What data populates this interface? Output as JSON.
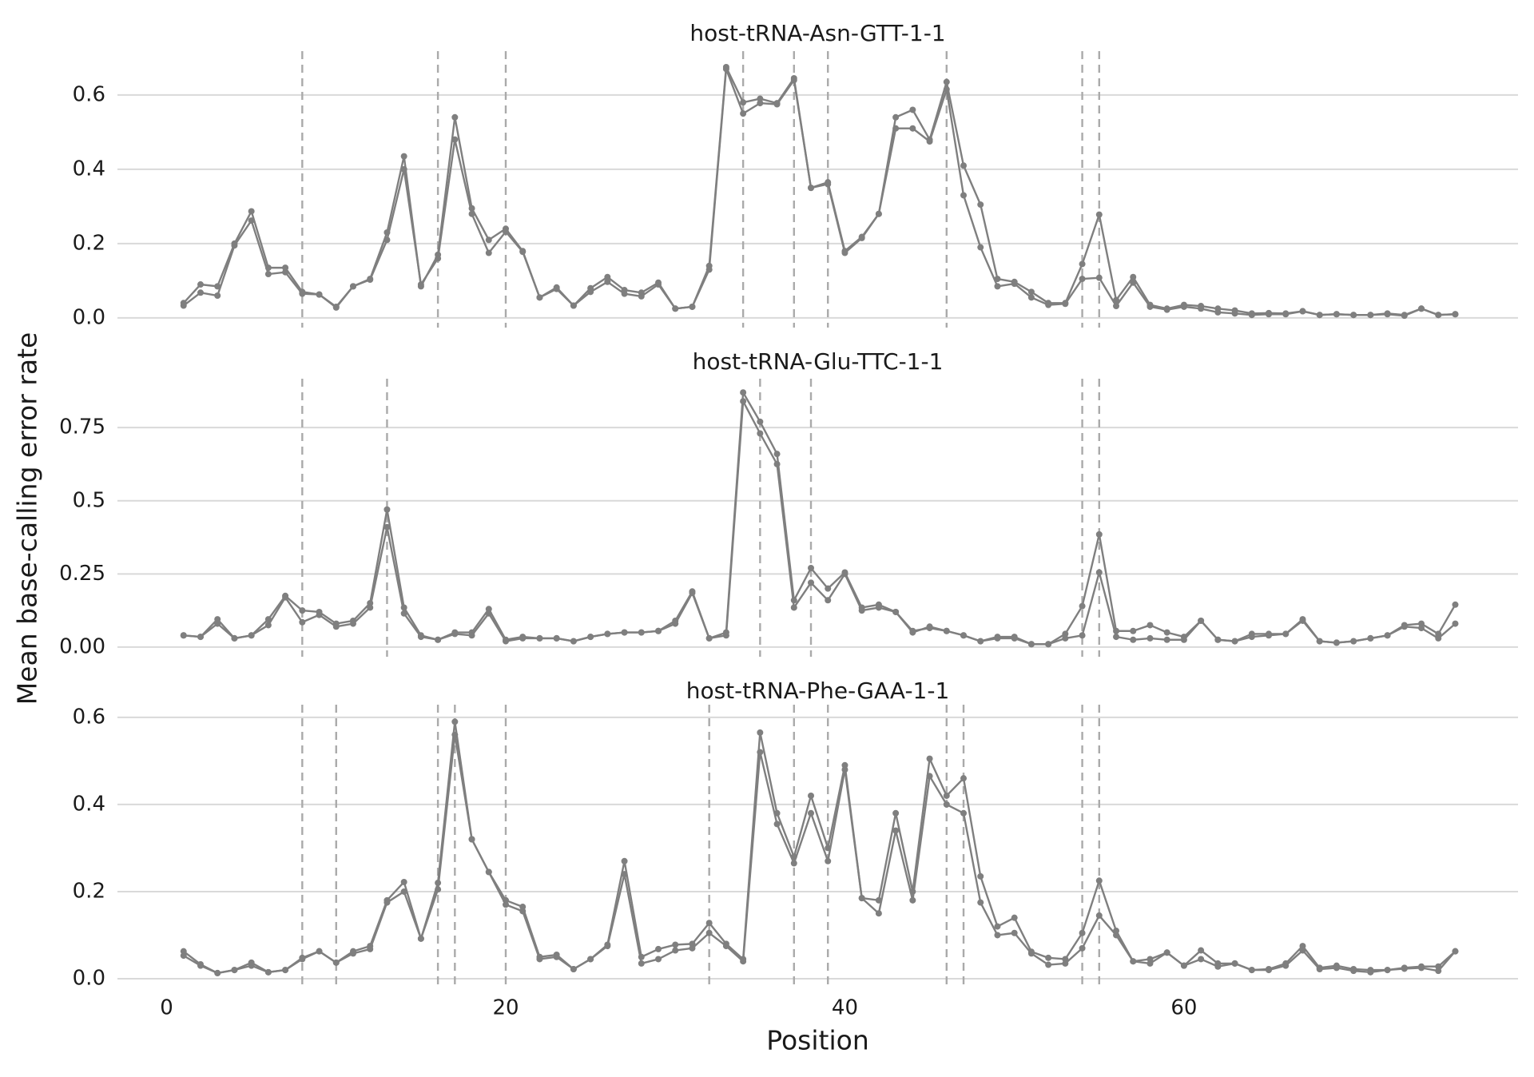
{
  "chart_data": [
    {
      "type": "line",
      "title": "host-tRNA-Asn-GTT-1-1",
      "x": [
        1,
        2,
        3,
        4,
        5,
        6,
        7,
        8,
        9,
        10,
        11,
        12,
        13,
        14,
        15,
        16,
        17,
        18,
        19,
        20,
        21,
        22,
        23,
        24,
        25,
        26,
        27,
        28,
        29,
        30,
        31,
        32,
        33,
        34,
        35,
        36,
        37,
        38,
        39,
        40,
        41,
        42,
        43,
        44,
        45,
        46,
        47,
        48,
        49,
        50,
        51,
        52,
        53,
        54,
        55,
        56,
        57,
        58,
        59,
        60,
        61,
        62,
        63,
        64,
        65,
        66,
        67,
        68,
        69,
        70,
        71,
        72,
        73,
        74,
        75,
        76
      ],
      "series": [
        {
          "color": "#7f7f7f",
          "values": [
            0.04,
            0.09,
            0.085,
            0.2,
            0.287,
            0.135,
            0.135,
            0.07,
            0.063,
            0.028,
            0.085,
            0.105,
            0.23,
            0.435,
            0.085,
            0.17,
            0.54,
            0.295,
            0.21,
            0.24,
            0.18,
            0.055,
            0.082,
            0.033,
            0.08,
            0.11,
            0.075,
            0.068,
            0.095,
            0.025,
            0.03,
            0.14,
            0.675,
            0.58,
            0.59,
            0.578,
            0.645,
            0.35,
            0.365,
            0.18,
            0.218,
            0.28,
            0.54,
            0.56,
            0.48,
            0.635,
            0.41,
            0.305,
            0.105,
            0.097,
            0.07,
            0.04,
            0.04,
            0.145,
            0.278,
            0.048,
            0.11,
            0.035,
            0.025,
            0.035,
            0.032,
            0.025,
            0.02,
            0.012,
            0.013,
            0.012,
            0.018,
            0.008,
            0.01,
            0.008,
            0.008,
            0.012,
            0.008,
            0.025,
            0.008,
            0.01
          ]
        },
        {
          "color": "#7f7f7f",
          "values": [
            0.033,
            0.068,
            0.06,
            0.195,
            0.262,
            0.118,
            0.123,
            0.065,
            0.063,
            0.03,
            0.085,
            0.103,
            0.21,
            0.4,
            0.09,
            0.16,
            0.48,
            0.28,
            0.175,
            0.232,
            0.178,
            0.055,
            0.078,
            0.033,
            0.07,
            0.097,
            0.065,
            0.058,
            0.09,
            0.025,
            0.03,
            0.13,
            0.67,
            0.55,
            0.578,
            0.575,
            0.64,
            0.35,
            0.36,
            0.175,
            0.215,
            0.28,
            0.51,
            0.51,
            0.475,
            0.615,
            0.33,
            0.19,
            0.085,
            0.092,
            0.055,
            0.035,
            0.038,
            0.105,
            0.108,
            0.032,
            0.095,
            0.03,
            0.022,
            0.03,
            0.025,
            0.015,
            0.012,
            0.008,
            0.01,
            0.01,
            0.018,
            0.008,
            0.01,
            0.008,
            0.008,
            0.01,
            0.006,
            0.025,
            0.008,
            0.01
          ]
        }
      ],
      "vlines": [
        8,
        16,
        20,
        34,
        37,
        39,
        46,
        54,
        55
      ],
      "vline_color": "#aaaaaa",
      "xlim": [
        -2.9,
        79.7
      ],
      "ylim": [
        -0.026,
        0.718
      ],
      "yticks": [
        {
          "value": 0,
          "label": "0.0"
        },
        {
          "value": 0.2,
          "label": "0.2"
        },
        {
          "value": 0.4,
          "label": "0.4"
        },
        {
          "value": 0.6,
          "label": "0.6"
        }
      ],
      "grid": true
    },
    {
      "type": "line",
      "title": "host-tRNA-Glu-TTC-1-1",
      "ylabel": "Mean base-calling error rate",
      "x": [
        1,
        2,
        3,
        4,
        5,
        6,
        7,
        8,
        9,
        10,
        11,
        12,
        13,
        14,
        15,
        16,
        17,
        18,
        19,
        20,
        21,
        22,
        23,
        24,
        25,
        26,
        27,
        28,
        29,
        30,
        31,
        32,
        33,
        34,
        35,
        36,
        37,
        38,
        39,
        40,
        41,
        42,
        43,
        44,
        45,
        46,
        47,
        48,
        49,
        50,
        51,
        52,
        53,
        54,
        55,
        56,
        57,
        58,
        59,
        60,
        61,
        62,
        63,
        64,
        65,
        66,
        67,
        68,
        69,
        70,
        71,
        72,
        73,
        74,
        75,
        76
      ],
      "series": [
        {
          "color": "#7f7f7f",
          "values": [
            0.04,
            0.035,
            0.095,
            0.03,
            0.04,
            0.095,
            0.175,
            0.125,
            0.12,
            0.08,
            0.09,
            0.15,
            0.47,
            0.135,
            0.04,
            0.025,
            0.05,
            0.05,
            0.13,
            0.025,
            0.035,
            0.03,
            0.03,
            0.02,
            0.035,
            0.045,
            0.05,
            0.05,
            0.055,
            0.09,
            0.19,
            0.03,
            0.05,
            0.87,
            0.77,
            0.66,
            0.16,
            0.27,
            0.2,
            0.255,
            0.135,
            0.145,
            0.12,
            0.05,
            0.07,
            0.055,
            0.04,
            0.02,
            0.035,
            0.035,
            0.01,
            0.01,
            0.045,
            0.14,
            0.385,
            0.055,
            0.055,
            0.075,
            0.05,
            0.035,
            0.09,
            0.025,
            0.02,
            0.045,
            0.045,
            0.045,
            0.095,
            0.02,
            0.015,
            0.02,
            0.03,
            0.04,
            0.075,
            0.08,
            0.045,
            0.145
          ]
        },
        {
          "color": "#7f7f7f",
          "values": [
            0.04,
            0.035,
            0.08,
            0.03,
            0.04,
            0.075,
            0.17,
            0.085,
            0.11,
            0.07,
            0.08,
            0.135,
            0.41,
            0.115,
            0.035,
            0.025,
            0.045,
            0.04,
            0.115,
            0.02,
            0.03,
            0.03,
            0.03,
            0.02,
            0.035,
            0.045,
            0.05,
            0.05,
            0.055,
            0.08,
            0.185,
            0.03,
            0.04,
            0.84,
            0.73,
            0.625,
            0.135,
            0.22,
            0.16,
            0.25,
            0.125,
            0.135,
            0.12,
            0.055,
            0.065,
            0.055,
            0.04,
            0.02,
            0.03,
            0.03,
            0.01,
            0.01,
            0.03,
            0.04,
            0.255,
            0.035,
            0.025,
            0.03,
            0.025,
            0.025,
            0.09,
            0.025,
            0.02,
            0.035,
            0.04,
            0.045,
            0.09,
            0.02,
            0.015,
            0.02,
            0.03,
            0.04,
            0.07,
            0.065,
            0.03,
            0.08
          ]
        }
      ],
      "vlines": [
        8,
        13,
        35,
        38,
        54,
        55
      ],
      "vline_color": "#aaaaaa",
      "xlim": [
        -2.9,
        79.7
      ],
      "ylim": [
        -0.033,
        0.917
      ],
      "yticks": [
        {
          "value": 0,
          "label": "0.00"
        },
        0.25,
        0.5,
        0.75
      ],
      "grid": true
    },
    {
      "type": "line",
      "title": "host-tRNA-Phe-GAA-1-1",
      "xlabel": "Position",
      "x": [
        1,
        2,
        3,
        4,
        5,
        6,
        7,
        8,
        9,
        10,
        11,
        12,
        13,
        14,
        15,
        16,
        17,
        18,
        19,
        20,
        21,
        22,
        23,
        24,
        25,
        26,
        27,
        28,
        29,
        30,
        31,
        32,
        33,
        34,
        35,
        36,
        37,
        38,
        39,
        40,
        41,
        42,
        43,
        44,
        45,
        46,
        47,
        48,
        49,
        50,
        51,
        52,
        53,
        54,
        55,
        56,
        57,
        58,
        59,
        60,
        61,
        62,
        63,
        64,
        65,
        66,
        67,
        68,
        69,
        70,
        71,
        72,
        73,
        74,
        75,
        76
      ],
      "series": [
        {
          "color": "#7f7f7f",
          "values": [
            0.063,
            0.033,
            0.013,
            0.02,
            0.037,
            0.015,
            0.02,
            0.048,
            0.063,
            0.037,
            0.063,
            0.075,
            0.18,
            0.222,
            0.092,
            0.22,
            0.59,
            0.32,
            0.245,
            0.18,
            0.165,
            0.05,
            0.055,
            0.022,
            0.045,
            0.078,
            0.27,
            0.05,
            0.068,
            0.078,
            0.08,
            0.128,
            0.08,
            0.045,
            0.565,
            0.38,
            0.28,
            0.42,
            0.3,
            0.49,
            0.185,
            0.18,
            0.38,
            0.2,
            0.505,
            0.42,
            0.46,
            0.235,
            0.12,
            0.14,
            0.062,
            0.048,
            0.045,
            0.105,
            0.225,
            0.11,
            0.04,
            0.045,
            0.06,
            0.03,
            0.065,
            0.035,
            0.035,
            0.02,
            0.022,
            0.035,
            0.075,
            0.025,
            0.03,
            0.022,
            0.02,
            0.02,
            0.025,
            0.028,
            0.028,
            0.063
          ]
        },
        {
          "color": "#7f7f7f",
          "values": [
            0.053,
            0.03,
            0.013,
            0.02,
            0.03,
            0.015,
            0.02,
            0.045,
            0.063,
            0.037,
            0.058,
            0.068,
            0.175,
            0.2,
            0.092,
            0.205,
            0.56,
            0.32,
            0.245,
            0.17,
            0.155,
            0.045,
            0.05,
            0.022,
            0.045,
            0.075,
            0.24,
            0.035,
            0.045,
            0.065,
            0.07,
            0.105,
            0.075,
            0.04,
            0.52,
            0.355,
            0.265,
            0.38,
            0.27,
            0.48,
            0.185,
            0.15,
            0.34,
            0.18,
            0.465,
            0.4,
            0.38,
            0.175,
            0.1,
            0.105,
            0.058,
            0.032,
            0.035,
            0.07,
            0.145,
            0.1,
            0.04,
            0.035,
            0.06,
            0.03,
            0.045,
            0.028,
            0.035,
            0.02,
            0.02,
            0.03,
            0.065,
            0.022,
            0.025,
            0.018,
            0.015,
            0.02,
            0.023,
            0.025,
            0.018,
            0.063
          ]
        }
      ],
      "vlines": [
        8,
        10,
        16,
        17,
        20,
        32,
        37,
        39,
        46,
        47,
        54,
        55
      ],
      "vline_color": "#aaaaaa",
      "xlim": [
        -2.9,
        79.7
      ],
      "ylim": [
        -0.022,
        0.629
      ],
      "yticks": [
        {
          "value": 0,
          "label": "0.0"
        },
        {
          "value": 0.2,
          "label": "0.2"
        },
        {
          "value": 0.4,
          "label": "0.4"
        },
        {
          "value": 0.6,
          "label": "0.6"
        }
      ],
      "xticks": [
        0,
        20,
        40,
        60
      ],
      "grid": true
    }
  ]
}
